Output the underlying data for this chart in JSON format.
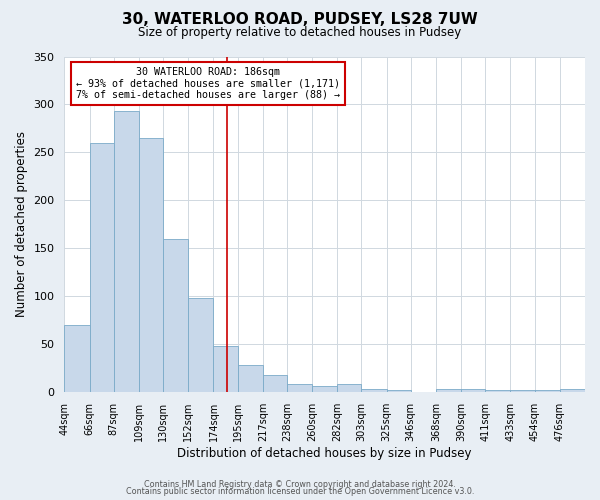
{
  "title": "30, WATERLOO ROAD, PUDSEY, LS28 7UW",
  "subtitle": "Size of property relative to detached houses in Pudsey",
  "xlabel": "Distribution of detached houses by size in Pudsey",
  "ylabel": "Number of detached properties",
  "bin_labels": [
    "44sqm",
    "66sqm",
    "87sqm",
    "109sqm",
    "130sqm",
    "152sqm",
    "174sqm",
    "195sqm",
    "217sqm",
    "238sqm",
    "260sqm",
    "282sqm",
    "303sqm",
    "325sqm",
    "346sqm",
    "368sqm",
    "390sqm",
    "411sqm",
    "433sqm",
    "454sqm",
    "476sqm"
  ],
  "bin_edges": [
    44,
    66,
    87,
    109,
    130,
    152,
    174,
    195,
    217,
    238,
    260,
    282,
    303,
    325,
    346,
    368,
    390,
    411,
    433,
    454,
    476,
    498
  ],
  "bar_values": [
    70,
    260,
    293,
    265,
    160,
    98,
    48,
    28,
    18,
    9,
    7,
    9,
    4,
    2,
    0,
    3,
    3,
    2,
    2,
    2,
    3
  ],
  "bar_color": "#c8d8ea",
  "bar_edge_color": "#7aaac8",
  "property_size": 186,
  "vline_color": "#cc0000",
  "annotation_title": "30 WATERLOO ROAD: 186sqm",
  "annotation_line1": "← 93% of detached houses are smaller (1,171)",
  "annotation_line2": "7% of semi-detached houses are larger (88) →",
  "annotation_box_color": "#cc0000",
  "ylim": [
    0,
    350
  ],
  "yticks": [
    0,
    50,
    100,
    150,
    200,
    250,
    300,
    350
  ],
  "footer1": "Contains HM Land Registry data © Crown copyright and database right 2024.",
  "footer2": "Contains public sector information licensed under the Open Government Licence v3.0.",
  "background_color": "#e8eef4",
  "plot_background_color": "#ffffff",
  "grid_color": "#d0d8e0"
}
